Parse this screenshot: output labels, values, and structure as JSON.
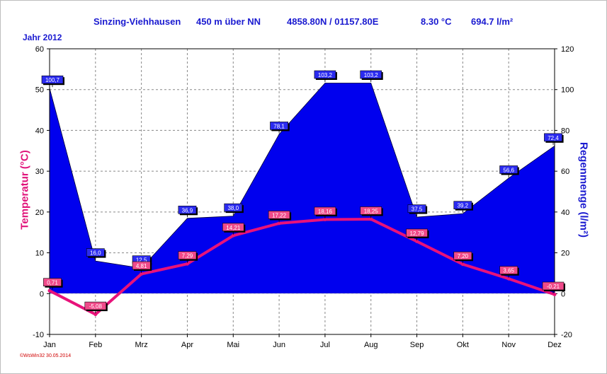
{
  "header": {
    "station": "Sinzing-Viehhausen",
    "altitude": "450 m über NN",
    "coords": "4858.80N / 01157.80E",
    "avg_temp": "8.30 °C",
    "total_rain": "694.7 l/m²"
  },
  "year_label": "Jahr  2012",
  "footer": "©WsWin32  30.05.2014",
  "colors": {
    "temperature": "#e8127a",
    "rain_fill": "#0000ee",
    "rain_label_bg": "#2b2bf0",
    "temp_label_bg": "#f04a8a",
    "grid": "#888888",
    "header_text": "#1a1ad0"
  },
  "chart_data": {
    "type": "line+area",
    "categories": [
      "Jan",
      "Feb",
      "Mrz",
      "Apr",
      "Mai",
      "Jun",
      "Jul",
      "Aug",
      "Sep",
      "Okt",
      "Nov",
      "Dez"
    ],
    "series": [
      {
        "name": "Temperatur",
        "axis": "left",
        "type": "line",
        "values": [
          0.71,
          -5.08,
          4.81,
          7.29,
          14.21,
          17.22,
          18.16,
          18.25,
          12.79,
          7.2,
          3.65,
          -0.21
        ],
        "labels": [
          "0,71",
          "-5,08",
          "4,81",
          "7,29",
          "14,21",
          "17,22",
          "18,16",
          "18,25",
          "12,79",
          "7,20",
          "3,65",
          "-0,21"
        ]
      },
      {
        "name": "Regenmenge",
        "axis": "right",
        "type": "area",
        "values": [
          100.7,
          16.0,
          12.5,
          36.9,
          38.0,
          78.1,
          103.2,
          103.2,
          37.5,
          39.2,
          56.6,
          72.4
        ],
        "labels": [
          "100,7",
          "16,0",
          "12,5",
          "36,9",
          "38,0",
          "78,1",
          "103,2",
          "103,2",
          "37,5",
          "39,2",
          "56,6",
          "72,4"
        ]
      }
    ],
    "ylabel_left": "Temperatur  (°C)",
    "ylabel_right": "Regenmenge  (l/m²)",
    "ylim_left": [
      -10,
      60
    ],
    "ylim_right": [
      -20,
      120
    ],
    "yticks_left": [
      "60",
      "50",
      "40",
      "30",
      "20",
      "10",
      "0",
      "-10"
    ],
    "yticks_right": [
      "120",
      "100",
      "80",
      "60",
      "40",
      "20",
      "0",
      "-20"
    ],
    "grid": true
  }
}
